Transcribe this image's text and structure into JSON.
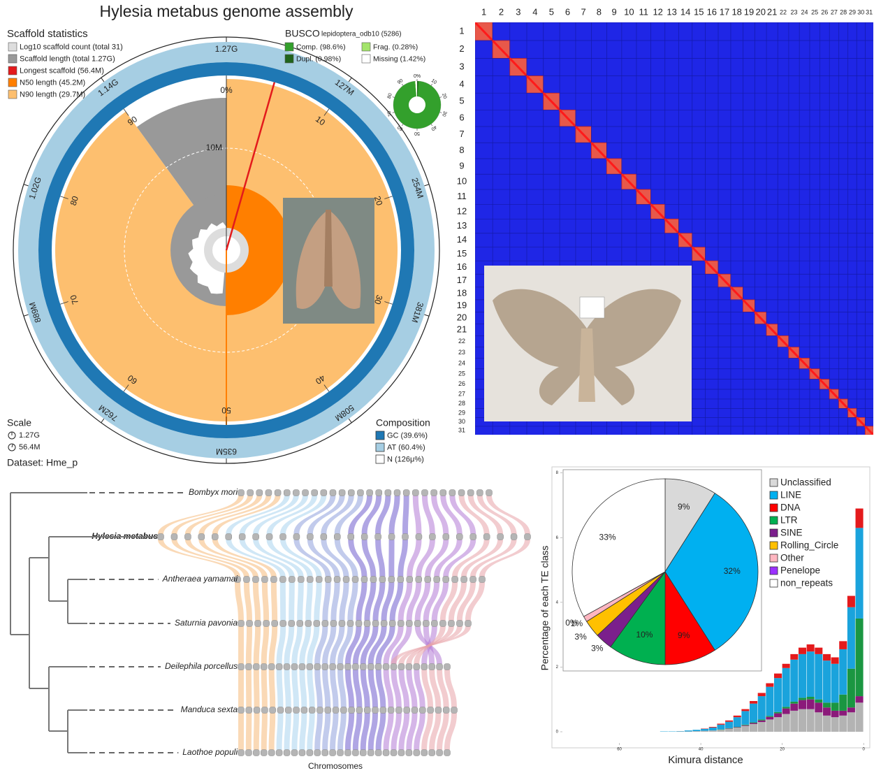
{
  "chart_data": [
    {
      "type": "snail",
      "title": "Hylesia metabus genome assembly",
      "legend_title": "Scaffold statistics",
      "series": [
        {
          "name": "Log10 scaffold count (total 31)",
          "color": "#dddddd"
        },
        {
          "name": "Scaffold length (total 1.27G)",
          "color": "#999999"
        },
        {
          "name": "Longest scaffold (56.4M)",
          "color": "#e31a1c"
        },
        {
          "name": "N50 length (45.2M)",
          "color": "#ff7f00"
        },
        {
          "name": "N90 length (29.7M)",
          "color": "#fdbf6f"
        }
      ],
      "scaffold_count": 31,
      "total_length": 1270,
      "longest": 56.4,
      "n50": 45.2,
      "n90": 29.7,
      "percent_ticks": [
        {
          "value": 0,
          "label": "0%"
        },
        10,
        20,
        30,
        40,
        50,
        60,
        70,
        80,
        90
      ],
      "length_ticks": [
        {
          "value": 127,
          "label": "127M"
        },
        {
          "value": 254,
          "label": "254M"
        },
        {
          "value": 381,
          "label": "381M"
        },
        {
          "value": 508,
          "label": "508M"
        },
        {
          "value": 635,
          "label": "635M"
        },
        {
          "value": 762,
          "label": "762M"
        },
        {
          "value": 889,
          "label": "889M"
        },
        {
          "value": 1016,
          "label": "1.02G"
        },
        {
          "value": 1143,
          "label": "1.14G"
        },
        {
          "value": 1270,
          "label": "1.27G"
        }
      ],
      "radial_tick": {
        "value": 10,
        "label": "10M"
      },
      "busco": {
        "title": "BUSCO",
        "dataset": "lepidoptera_odb10 (5286)",
        "series": [
          {
            "name": "Comp. (98.6%)",
            "color": "#33a02c",
            "value": 98.6
          },
          {
            "name": "Frag. (0.28%)",
            "color": "#a3e46b",
            "value": 0.28
          },
          {
            "name": "Dupl. (0.98%)",
            "color": "#20641c",
            "value": 0.98
          },
          {
            "name": "Missing (1.42%)",
            "color": "#ffffff",
            "value": 1.42
          }
        ],
        "ticks": [
          {
            "value": 0,
            "label": "0%"
          },
          10,
          20,
          30,
          40,
          50,
          60,
          70,
          80,
          90
        ]
      },
      "scale": {
        "title": "Scale",
        "labels": [
          "1.27G",
          "56.4M"
        ]
      },
      "dataset": "Dataset: Hme_p",
      "composition": {
        "title": "Composition",
        "series": [
          {
            "name": "GC (39.6%)",
            "color": "#1f78b4",
            "value": 39.6
          },
          {
            "name": "AT (60.4%)",
            "color": "#a6cee3",
            "value": 60.4
          },
          {
            "name": "N (126μ%)",
            "color": "#ffffff",
            "value": 0.000126
          }
        ]
      }
    },
    {
      "type": "heatmap",
      "categories": [
        "1",
        "2",
        "3",
        "4",
        "5",
        "6",
        "7",
        "8",
        "9",
        "10",
        "11",
        "12",
        "13",
        "14",
        "15",
        "16",
        "17",
        "18",
        "19",
        "20",
        "21",
        "22",
        "23",
        "24",
        "25",
        "26",
        "27",
        "28",
        "29",
        "30",
        "31"
      ]
    },
    {
      "type": "synteny",
      "species": [
        "Bombyx mori",
        "Hylesia metabus",
        "Antheraea yamamai",
        "Saturnia pavonia",
        "Deilephila porcellus",
        "Manduca sexta",
        "Laothoe populi"
      ],
      "highlight_index": 1,
      "xlabel": "Chromosomes"
    },
    {
      "type": "histogram",
      "ylabel": "Percentage of each TE class",
      "xlabel": "Kimura distance",
      "bins": [
        0,
        2,
        4,
        6,
        8,
        10,
        12,
        14,
        16,
        18,
        20,
        22,
        24,
        26,
        28,
        30,
        32,
        34,
        36,
        38,
        40,
        42,
        44,
        46,
        48,
        50
      ],
      "series": [
        {
          "color": "#b3b3b3",
          "values": [
            0.9,
            0.6,
            0.5,
            0.45,
            0.5,
            0.6,
            0.7,
            0.7,
            0.65,
            0.55,
            0.45,
            0.38,
            0.3,
            0.24,
            0.18,
            0.13,
            0.09,
            0.06,
            0.04,
            0.03,
            0.02,
            0.01,
            0.01,
            0,
            0
          ]
        },
        {
          "color": "#8b1a7a",
          "values": [
            0.2,
            0.15,
            0.15,
            0.2,
            0.25,
            0.3,
            0.3,
            0.28,
            0.22,
            0.17,
            0.12,
            0.08,
            0.05,
            0.03,
            0.02,
            0.01,
            0.01,
            0,
            0,
            0,
            0,
            0,
            0,
            0,
            0
          ]
        },
        {
          "color": "#1a9641",
          "values": [
            2.4,
            1.2,
            0.5,
            0.25,
            0.15,
            0.1,
            0.08,
            0.07,
            0.06,
            0.05,
            0.04,
            0.03,
            0.03,
            0.02,
            0.02,
            0.01,
            0.01,
            0.01,
            0,
            0,
            0,
            0,
            0,
            0,
            0
          ]
        },
        {
          "color": "#1aa3dc",
          "values": [
            2.8,
            1.9,
            1.4,
            1.2,
            1.3,
            1.4,
            1.4,
            1.35,
            1.3,
            1.2,
            1.05,
            0.9,
            0.72,
            0.58,
            0.42,
            0.3,
            0.2,
            0.15,
            0.09,
            0.06,
            0.04,
            0.03,
            0.01,
            0.01,
            0.01
          ]
        },
        {
          "color": "#e41a1c",
          "values": [
            0.6,
            0.35,
            0.25,
            0.2,
            0.2,
            0.2,
            0.22,
            0.2,
            0.17,
            0.13,
            0.14,
            0.11,
            0.1,
            0.08,
            0.06,
            0.05,
            0.04,
            0.03,
            0.02,
            0.01,
            0,
            0,
            0,
            0,
            0
          ]
        }
      ],
      "xlim": [
        74,
        -1
      ],
      "xticks": [
        60,
        40,
        20,
        0
      ],
      "ylim": [
        0,
        8.1
      ],
      "yticks": [
        0,
        2,
        4,
        6,
        8
      ]
    },
    {
      "type": "pie",
      "categories": [
        "Unclassified",
        "LINE",
        "DNA",
        "LTR",
        "SINE",
        "Rolling_Circle",
        "Other",
        "Penelope",
        "non_repeats"
      ],
      "colors": [
        "#d9d9d9",
        "#00b0f0",
        "#ff0000",
        "#00b050",
        "#7b1f8c",
        "#ffc000",
        "#ffb6c1",
        "#9b30ff",
        "#ffffff"
      ],
      "values": [
        9,
        32,
        9,
        10,
        3,
        3,
        1,
        0,
        33
      ],
      "value_labels": [
        "9%",
        "32%",
        "9%",
        "10%",
        "3%",
        "3%",
        "1%",
        "0%",
        "33%"
      ]
    }
  ]
}
